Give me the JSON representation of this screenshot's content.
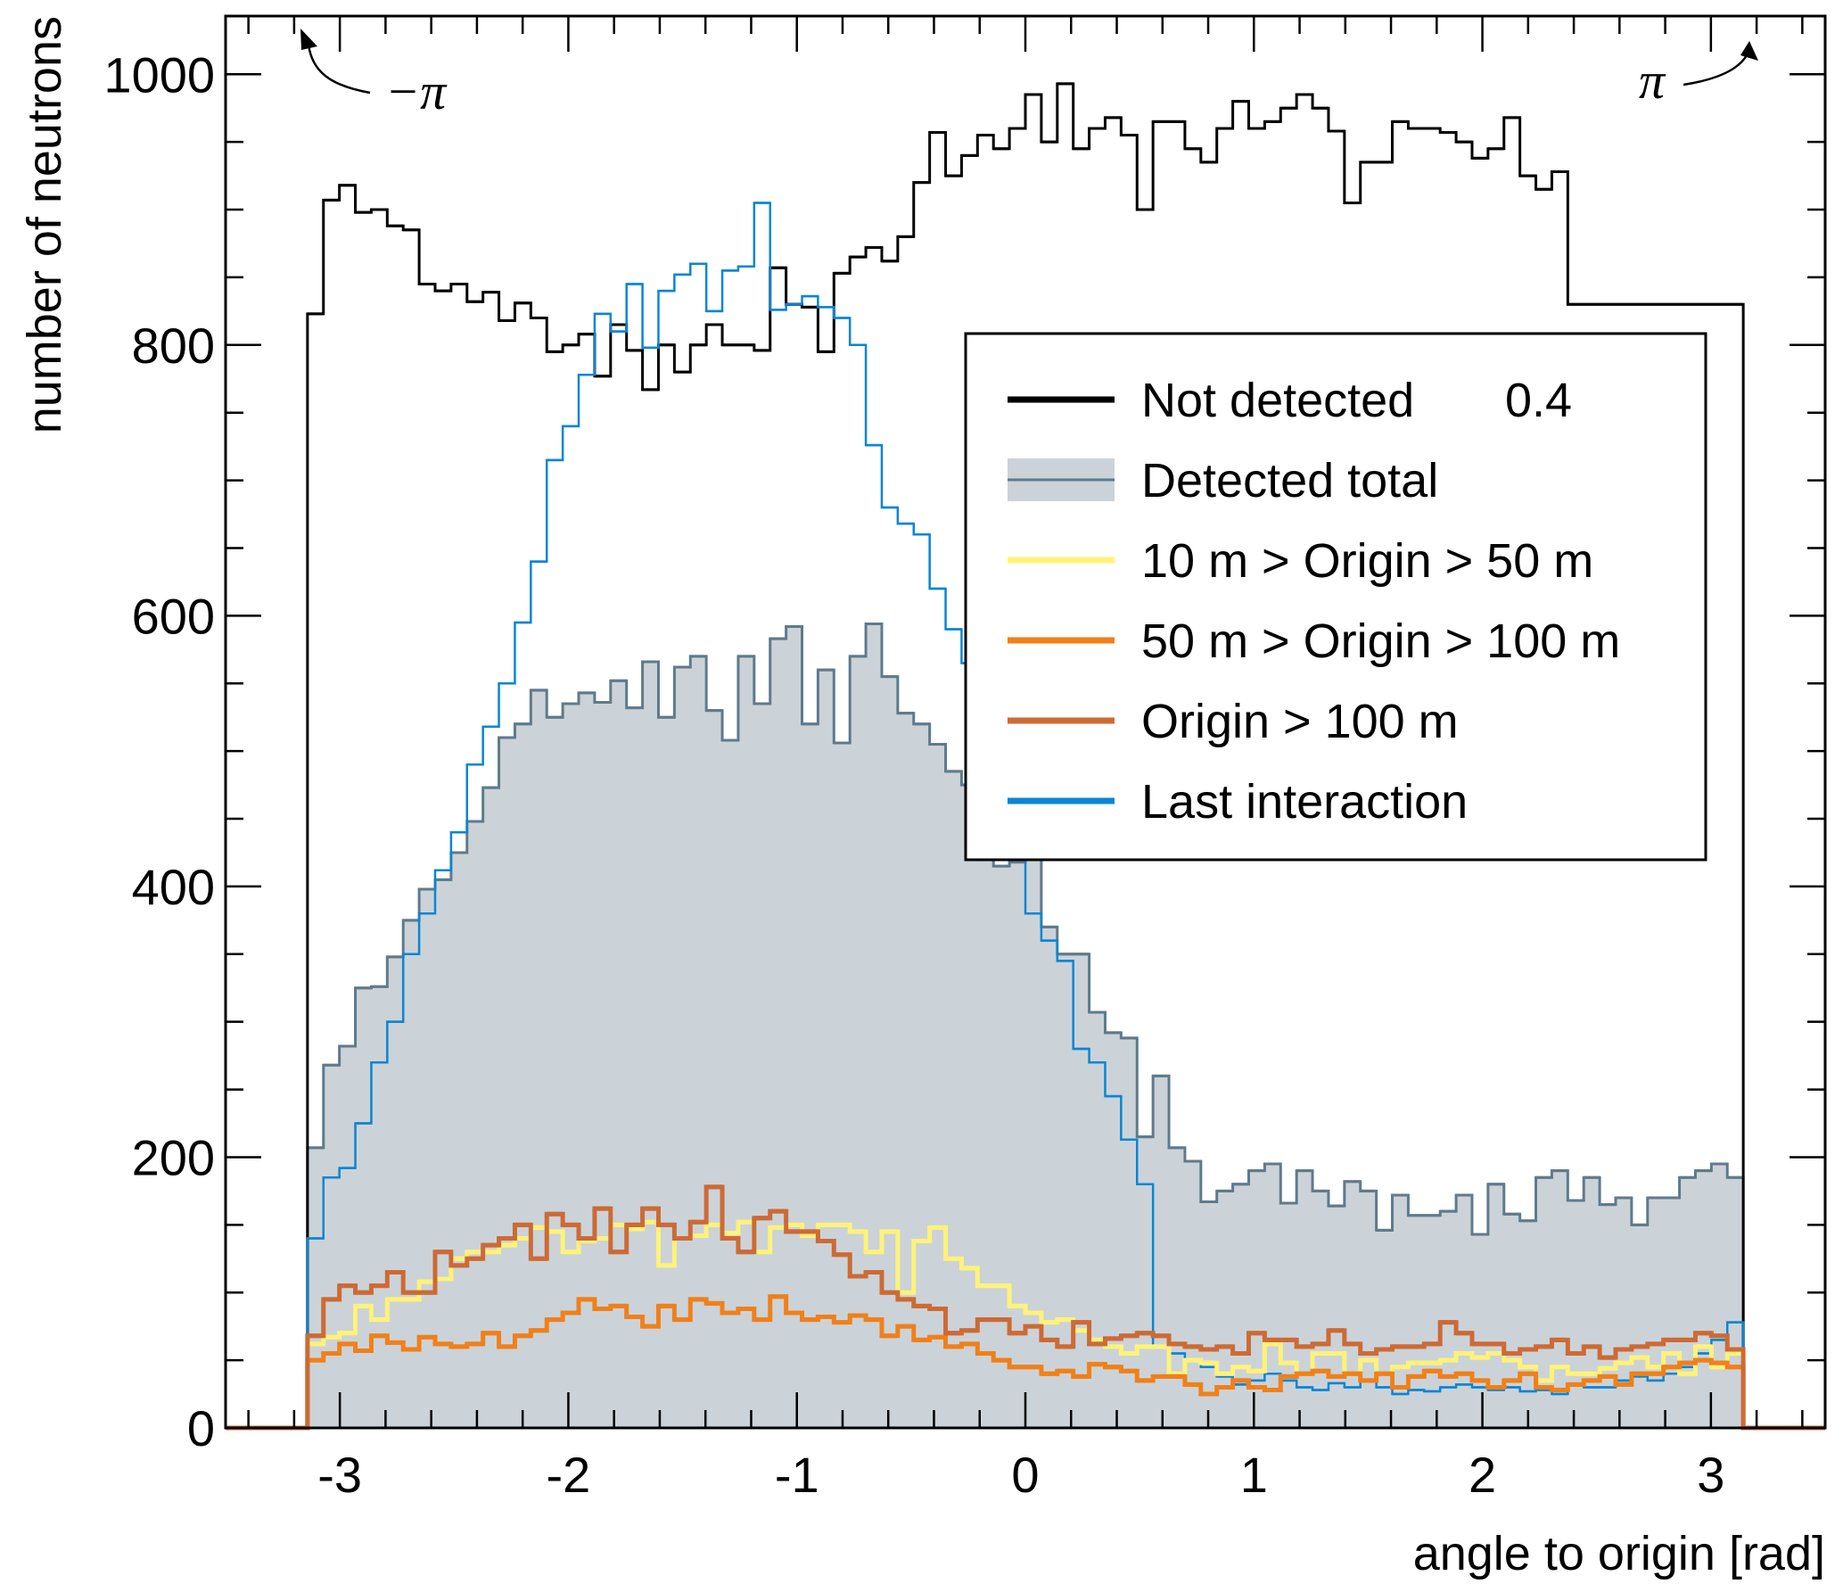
{
  "chart_data": {
    "type": "histogram-step",
    "title": "",
    "xlabel": "angle to origin [rad]",
    "ylabel": "number of neutrons",
    "xlim": [
      -3.5,
      3.5
    ],
    "ylim": [
      0,
      1043
    ],
    "x_ticks": [
      "-3",
      "-2",
      "-1",
      "0",
      "1",
      "2",
      "3"
    ],
    "x_tick_values": [
      -3,
      -2,
      -1,
      0,
      1,
      2,
      3
    ],
    "y_ticks": [
      "0",
      "200",
      "400",
      "600",
      "800",
      "1000"
    ],
    "y_tick_values": [
      0,
      200,
      400,
      600,
      800,
      1000
    ],
    "grid": false,
    "legend_position": "right-center",
    "bins": {
      "min": -3.14159,
      "max": 3.14159,
      "count": 90
    },
    "annotations": [
      {
        "text": "−π",
        "points_to": "x=-pi (top-left)"
      },
      {
        "text": "π",
        "points_to": "x=pi (top-right)"
      }
    ],
    "series": [
      {
        "name": "Detected total",
        "style": "filled",
        "color": "#5f7a8c",
        "fill": "#cbd3d8",
        "values": [
          207,
          268,
          282,
          325,
          326,
          348,
          375,
          398,
          405,
          425,
          448,
          473,
          510,
          520,
          545,
          525,
          535,
          543,
          536,
          552,
          532,
          566,
          525,
          562,
          570,
          530,
          508,
          570,
          535,
          583,
          592,
          520,
          560,
          506,
          570,
          594,
          555,
          528,
          520,
          505,
          485,
          475,
          455,
          415,
          418,
          436,
          370,
          350,
          350,
          307,
          292,
          288,
          215,
          260,
          207,
          197,
          167,
          175,
          180,
          190,
          195,
          166,
          190,
          175,
          164,
          182,
          175,
          146,
          172,
          157,
          157,
          160,
          172,
          143,
          180,
          158,
          153,
          185,
          190,
          168,
          185,
          165,
          170,
          150,
          170,
          170,
          185,
          190,
          195,
          185
        ]
      },
      {
        "name": "Not detected",
        "scale_note": "0.4",
        "style": "line",
        "color": "#000000",
        "values": [
          823,
          907,
          918,
          898,
          900,
          888,
          885,
          845,
          840,
          845,
          832,
          839,
          818,
          831,
          820,
          795,
          800,
          808,
          777,
          815,
          796,
          767,
          800,
          780,
          800,
          815,
          800,
          800,
          796,
          857,
          830,
          828,
          795,
          853,
          865,
          872,
          862,
          880,
          920,
          957,
          925,
          940,
          955,
          945,
          960,
          985,
          950,
          993,
          945,
          960,
          968,
          955,
          900,
          965,
          965,
          945,
          935,
          960,
          980,
          960,
          965,
          975,
          985,
          975,
          958,
          905,
          935,
          935,
          965,
          960,
          960,
          957,
          950,
          938,
          945,
          968,
          925,
          915,
          928,
          830,
          830,
          830,
          830,
          830,
          830,
          830,
          830,
          830,
          830,
          830
        ]
      },
      {
        "name": "10 m > Origin > 50 m",
        "style": "line",
        "color": "#fff27a",
        "values": [
          62,
          67,
          70,
          90,
          80,
          95,
          95,
          108,
          110,
          125,
          130,
          130,
          135,
          140,
          148,
          145,
          130,
          138,
          140,
          150,
          147,
          152,
          120,
          140,
          142,
          150,
          144,
          152,
          130,
          148,
          150,
          142,
          150,
          150,
          145,
          130,
          145,
          100,
          138,
          148,
          125,
          118,
          105,
          105,
          90,
          85,
          78,
          80,
          72,
          65,
          60,
          55,
          60,
          60,
          40,
          50,
          48,
          40,
          45,
          42,
          62,
          48,
          40,
          55,
          55,
          40,
          50,
          40,
          45,
          48,
          48,
          50,
          55,
          52,
          55,
          50,
          45,
          35,
          45,
          40,
          40,
          44,
          48,
          52,
          45,
          55,
          40,
          60,
          45,
          55
        ]
      },
      {
        "name": "50 m > Origin > 100 m",
        "style": "line",
        "color": "#f08019",
        "values": [
          50,
          55,
          62,
          57,
          68,
          63,
          58,
          67,
          62,
          60,
          62,
          70,
          60,
          68,
          72,
          80,
          85,
          95,
          88,
          90,
          82,
          75,
          90,
          80,
          95,
          92,
          85,
          88,
          80,
          97,
          85,
          80,
          82,
          78,
          83,
          80,
          68,
          75,
          65,
          67,
          60,
          62,
          55,
          50,
          45,
          45,
          40,
          42,
          38,
          47,
          45,
          42,
          35,
          38,
          38,
          32,
          25,
          30,
          35,
          30,
          28,
          38,
          40,
          42,
          38,
          40,
          35,
          40,
          30,
          38,
          42,
          38,
          40,
          35,
          30,
          35,
          40,
          30,
          28,
          32,
          35,
          38,
          32,
          40,
          40,
          45,
          48,
          50,
          48,
          45
        ]
      },
      {
        "name": "Origin > 100 m",
        "style": "line",
        "color": "#cd6a35",
        "values": [
          68,
          95,
          105,
          100,
          105,
          115,
          100,
          100,
          130,
          120,
          125,
          135,
          140,
          150,
          125,
          158,
          150,
          140,
          162,
          130,
          150,
          162,
          150,
          140,
          152,
          178,
          140,
          130,
          155,
          160,
          145,
          145,
          138,
          128,
          112,
          115,
          100,
          95,
          90,
          88,
          70,
          72,
          80,
          80,
          70,
          75,
          65,
          60,
          78,
          62,
          66,
          68,
          70,
          68,
          62,
          60,
          58,
          60,
          55,
          70,
          65,
          65,
          60,
          62,
          72,
          62,
          55,
          58,
          60,
          60,
          62,
          78,
          70,
          62,
          62,
          55,
          58,
          60,
          65,
          55,
          60,
          52,
          58,
          60,
          62,
          65,
          65,
          70,
          68,
          58
        ]
      },
      {
        "name": "Last interaction",
        "style": "line",
        "color": "#0b85d3",
        "values": [
          140,
          185,
          192,
          225,
          270,
          300,
          350,
          380,
          412,
          440,
          490,
          518,
          550,
          595,
          640,
          715,
          740,
          778,
          823,
          810,
          845,
          798,
          840,
          852,
          860,
          825,
          855,
          858,
          905,
          826,
          830,
          836,
          828,
          820,
          800,
          726,
          680,
          668,
          660,
          620,
          590,
          565,
          545,
          480,
          420,
          380,
          360,
          345,
          280,
          270,
          245,
          213,
          180,
          60,
          55,
          50,
          45,
          38,
          32,
          35,
          40,
          35,
          30,
          28,
          33,
          30,
          35,
          30,
          25,
          28,
          27,
          30,
          32,
          30,
          28,
          30,
          27,
          28,
          25,
          32,
          30,
          30,
          35,
          38,
          35,
          40,
          45,
          55,
          65,
          78
        ]
      }
    ]
  },
  "legend": {
    "items": [
      {
        "label": "Not detected",
        "extra": "0.4",
        "color": "#000000",
        "kind": "line"
      },
      {
        "label": "Detected total",
        "color": "#5f7a8c",
        "fill": "#cbd3d8",
        "kind": "fill"
      },
      {
        "label": "10 m > Origin > 50 m",
        "color": "#fff27a",
        "kind": "line"
      },
      {
        "label": "50 m > Origin > 100 m",
        "color": "#f08019",
        "kind": "line"
      },
      {
        "label": "Origin > 100 m",
        "color": "#cd6a35",
        "kind": "line"
      },
      {
        "label": "Last interaction",
        "color": "#0b85d3",
        "kind": "line"
      }
    ]
  }
}
